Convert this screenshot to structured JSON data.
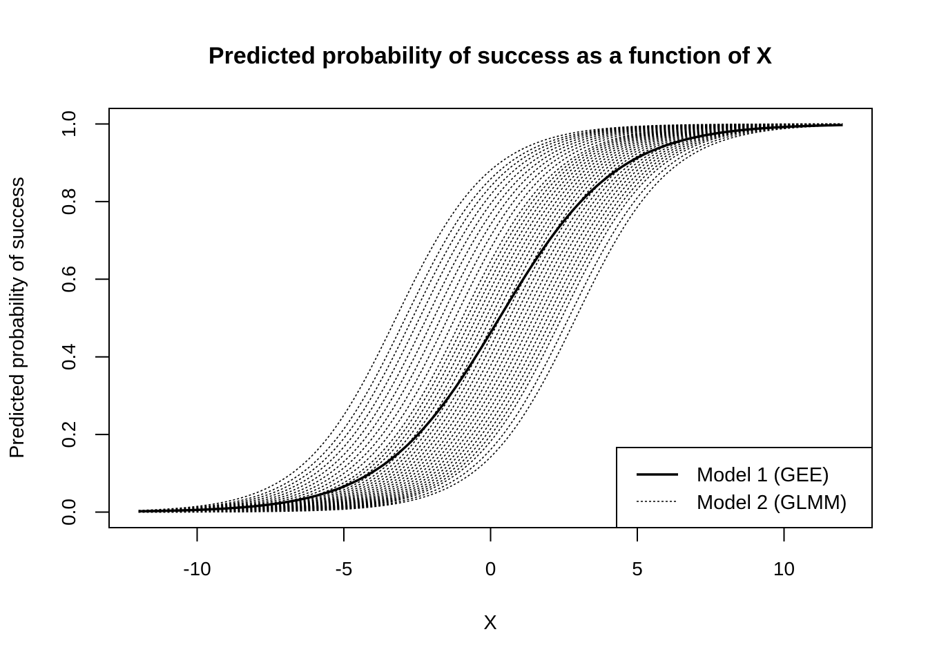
{
  "chart_data": {
    "type": "line",
    "title": "Predicted probability of success as a function of X",
    "xlabel": "X",
    "ylabel": "Predicted probability of success",
    "xlim": [
      -13,
      13
    ],
    "ylim": [
      -0.04,
      1.04
    ],
    "x_range": [
      -12,
      12
    ],
    "x_ticks": [
      -10,
      -5,
      0,
      5,
      10
    ],
    "y_ticks": [
      0.0,
      0.2,
      0.4,
      0.6,
      0.8,
      1.0
    ],
    "x_tick_labels": [
      "-10",
      "-5",
      "0",
      "5",
      "10"
    ],
    "y_tick_labels": [
      "0.0",
      "0.2",
      "0.4",
      "0.6",
      "0.8",
      "1.0"
    ],
    "grid": false,
    "legend": {
      "position": "bottom-right",
      "entries": [
        {
          "label": "Model 1 (GEE)",
          "style": "solid"
        },
        {
          "label": "Model 2 (GLMM)",
          "style": "dotted"
        }
      ]
    },
    "series": [
      {
        "name": "Model 1 (GEE)",
        "style": "solid",
        "model": "logistic",
        "intercept": -0.15,
        "slope": 0.5
      },
      {
        "name": "Model 2 (GLMM)",
        "style": "dotted",
        "model": "logistic",
        "slope": 0.62,
        "intercepts": [
          2.0,
          1.8,
          1.65,
          1.5,
          1.35,
          1.2,
          1.05,
          0.9,
          0.75,
          0.6,
          0.5,
          0.4,
          0.3,
          0.2,
          0.1,
          0.0,
          -0.1,
          -0.2,
          -0.3,
          -0.4,
          -0.5,
          -0.6,
          -0.7,
          -0.8,
          -0.9,
          -1.0,
          -1.1,
          -1.2,
          -1.3,
          -1.4,
          -1.5,
          -1.65,
          -1.8
        ]
      }
    ]
  }
}
